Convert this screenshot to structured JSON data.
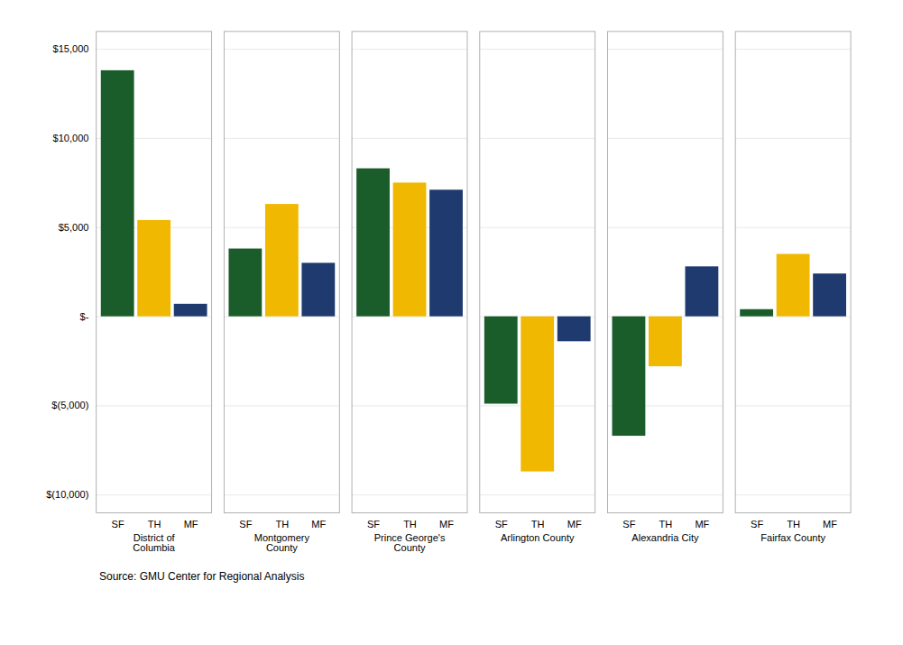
{
  "chart_data": {
    "type": "bar",
    "categories": [
      "District of\nColumbia",
      "Montgomery\nCounty",
      "Prince George's\nCounty",
      "Arlington County",
      "Alexandria City",
      "Fairfax County"
    ],
    "series": [
      {
        "name": "SF",
        "color": "#1a5c2a",
        "values": [
          13800,
          3800,
          8300,
          -4900,
          -6700,
          400
        ]
      },
      {
        "name": "TH",
        "color": "#f0b800",
        "values": [
          5400,
          6300,
          7500,
          -8700,
          -2800,
          3500
        ]
      },
      {
        "name": "MF",
        "color": "#1e3a6e",
        "values": [
          700,
          3000,
          7100,
          -1400,
          2800,
          2400
        ]
      }
    ],
    "ylim": [
      -11000,
      16000
    ],
    "yticks": [
      {
        "value": -10000,
        "label": "$(10,000)"
      },
      {
        "value": -5000,
        "label": "$(5,000)"
      },
      {
        "value": 0,
        "label": "$-"
      },
      {
        "value": 5000,
        "label": "$5,000"
      },
      {
        "value": 10000,
        "label": "$10,000"
      },
      {
        "value": 15000,
        "label": "$15,000"
      }
    ],
    "grid": true,
    "caption": "Source: GMU Center for Regional Analysis"
  }
}
